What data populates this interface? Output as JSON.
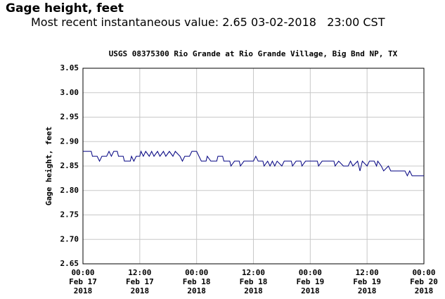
{
  "header": {
    "title": "Gage height, feet",
    "subtitle": "Most recent instantaneous value: 2.65 03-02-2018   23:00 CST"
  },
  "chart_data": {
    "type": "line",
    "title": "USGS 08375300 Rio Grande at Rio Grande Village, Big Bnd NP, TX",
    "ylabel": "Gage height, feet",
    "ylim": [
      2.65,
      3.05
    ],
    "yticks": [
      2.65,
      {
        "value": 2.7,
        "label": "2.70"
      },
      2.75,
      {
        "value": 2.8,
        "label": "2.80"
      },
      2.85,
      {
        "value": 2.9,
        "label": "2.90"
      },
      2.95,
      {
        "value": 3.0,
        "label": "3.00"
      },
      3.05
    ],
    "xlim": [
      "2018-02-17T00:00",
      "2018-02-20T00:00"
    ],
    "xticks": [
      {
        "value": "2018-02-17T00:00",
        "label": [
          "00:00",
          "Feb 17",
          "2018"
        ]
      },
      {
        "value": "2018-02-17T12:00",
        "label": [
          "12:00",
          "Feb 17",
          "2018"
        ]
      },
      {
        "value": "2018-02-18T00:00",
        "label": [
          "00:00",
          "Feb 18",
          "2018"
        ]
      },
      {
        "value": "2018-02-18T12:00",
        "label": [
          "12:00",
          "Feb 18",
          "2018"
        ]
      },
      {
        "value": "2018-02-19T00:00",
        "label": [
          "00:00",
          "Feb 19",
          "2018"
        ]
      },
      {
        "value": "2018-02-19T12:00",
        "label": [
          "12:00",
          "Feb 19",
          "2018"
        ]
      },
      {
        "value": "2018-02-20T00:00",
        "label": [
          "00:00",
          "Feb 20",
          "2018"
        ]
      }
    ],
    "grid": true,
    "series": [
      {
        "color": "#000080",
        "x": [
          "2018-02-17T00:00",
          "2018-02-17T01:45",
          "2018-02-17T02:00",
          "2018-02-17T03:00",
          "2018-02-17T03:30",
          "2018-02-17T04:00",
          "2018-02-17T05:00",
          "2018-02-17T05:30",
          "2018-02-17T06:00",
          "2018-02-17T06:30",
          "2018-02-17T07:15",
          "2018-02-17T07:30",
          "2018-02-17T08:30",
          "2018-02-17T08:45",
          "2018-02-17T10:00",
          "2018-02-17T10:15",
          "2018-02-17T10:45",
          "2018-02-17T11:15",
          "2018-02-17T12:00",
          "2018-02-17T12:15",
          "2018-02-17T12:45",
          "2018-02-17T13:15",
          "2018-02-17T14:00",
          "2018-02-17T14:30",
          "2018-02-17T15:00",
          "2018-02-17T15:45",
          "2018-02-17T16:15",
          "2018-02-17T17:00",
          "2018-02-17T17:30",
          "2018-02-17T18:15",
          "2018-02-17T19:00",
          "2018-02-17T19:30",
          "2018-02-17T20:30",
          "2018-02-17T21:00",
          "2018-02-17T21:30",
          "2018-02-17T22:30",
          "2018-02-17T23:00",
          "2018-02-18T00:00",
          "2018-02-18T00:30",
          "2018-02-18T01:00",
          "2018-02-18T02:00",
          "2018-02-18T02:15",
          "2018-02-18T03:00",
          "2018-02-18T04:15",
          "2018-02-18T04:30",
          "2018-02-18T05:30",
          "2018-02-18T05:45",
          "2018-02-18T07:00",
          "2018-02-18T07:15",
          "2018-02-18T08:00",
          "2018-02-18T09:00",
          "2018-02-18T09:15",
          "2018-02-18T10:00",
          "2018-02-18T12:00",
          "2018-02-18T12:30",
          "2018-02-18T13:00",
          "2018-02-18T14:00",
          "2018-02-18T14:15",
          "2018-02-18T15:00",
          "2018-02-18T15:30",
          "2018-02-18T16:00",
          "2018-02-18T16:30",
          "2018-02-18T17:00",
          "2018-02-18T18:00",
          "2018-02-18T18:30",
          "2018-02-18T20:00",
          "2018-02-18T20:15",
          "2018-02-18T21:00",
          "2018-02-18T22:00",
          "2018-02-18T22:15",
          "2018-02-18T23:00",
          "2018-02-19T01:30",
          "2018-02-19T01:45",
          "2018-02-19T02:30",
          "2018-02-19T05:00",
          "2018-02-19T05:15",
          "2018-02-19T06:00",
          "2018-02-19T07:00",
          "2018-02-19T08:00",
          "2018-02-19T08:30",
          "2018-02-19T09:00",
          "2018-02-19T10:00",
          "2018-02-19T10:30",
          "2018-02-19T11:00",
          "2018-02-19T12:00",
          "2018-02-19T12:30",
          "2018-02-19T13:30",
          "2018-02-19T14:00",
          "2018-02-19T14:15",
          "2018-02-19T15:00",
          "2018-02-19T15:30",
          "2018-02-19T16:30",
          "2018-02-19T17:00",
          "2018-02-19T20:00",
          "2018-02-19T20:30",
          "2018-02-19T21:00",
          "2018-02-19T21:30",
          "2018-02-20T00:00"
        ],
        "values": [
          2.88,
          2.88,
          2.87,
          2.87,
          2.86,
          2.87,
          2.87,
          2.88,
          2.87,
          2.88,
          2.88,
          2.87,
          2.87,
          2.86,
          2.86,
          2.87,
          2.86,
          2.87,
          2.87,
          2.88,
          2.87,
          2.88,
          2.87,
          2.88,
          2.87,
          2.88,
          2.87,
          2.88,
          2.87,
          2.88,
          2.87,
          2.88,
          2.87,
          2.86,
          2.87,
          2.87,
          2.88,
          2.88,
          2.87,
          2.86,
          2.86,
          2.87,
          2.86,
          2.86,
          2.87,
          2.87,
          2.86,
          2.86,
          2.85,
          2.86,
          2.86,
          2.85,
          2.86,
          2.86,
          2.87,
          2.86,
          2.86,
          2.85,
          2.86,
          2.85,
          2.86,
          2.85,
          2.86,
          2.85,
          2.86,
          2.86,
          2.85,
          2.86,
          2.86,
          2.85,
          2.86,
          2.86,
          2.85,
          2.86,
          2.86,
          2.85,
          2.86,
          2.85,
          2.85,
          2.86,
          2.85,
          2.86,
          2.84,
          2.86,
          2.85,
          2.86,
          2.86,
          2.85,
          2.86,
          2.85,
          2.84,
          2.85,
          2.84,
          2.84,
          2.83,
          2.84,
          2.83,
          2.83
        ]
      }
    ]
  }
}
